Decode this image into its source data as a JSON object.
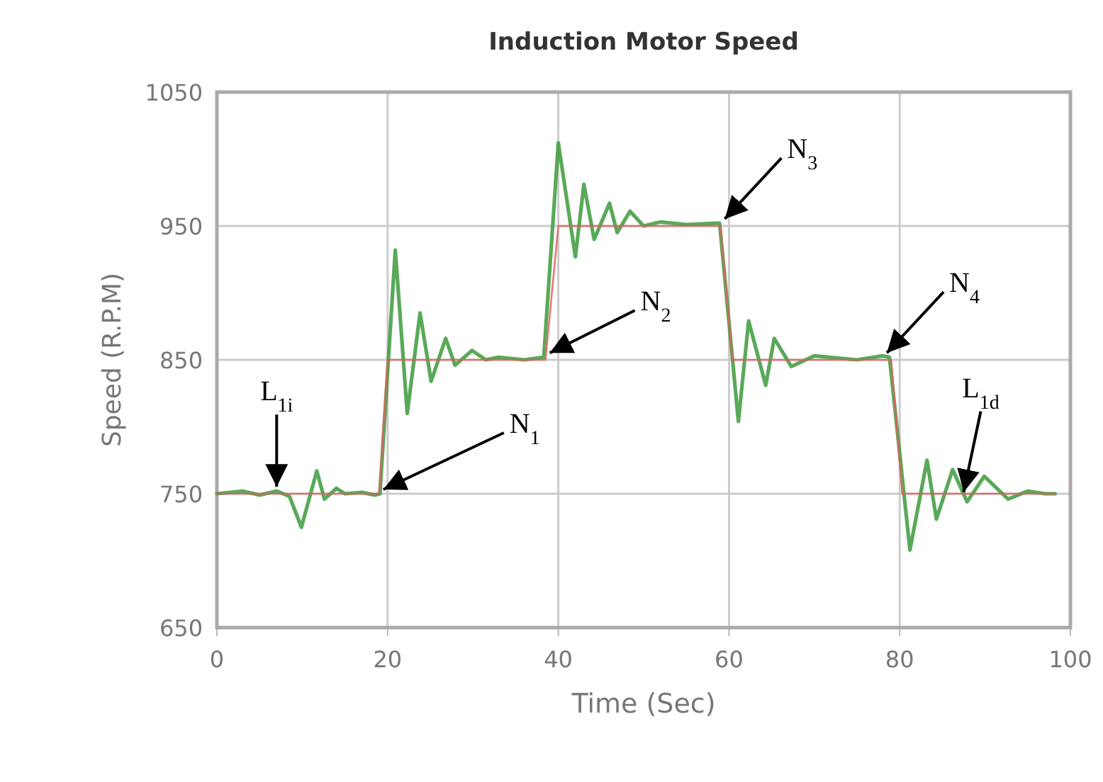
{
  "chart_data": {
    "type": "line",
    "title": "Induction Motor Speed",
    "xlabel": "Time (Sec)",
    "ylabel": "Speed (R.P.M)",
    "xlim": [
      0,
      100
    ],
    "ylim": [
      650,
      1050
    ],
    "xticks": [
      0,
      20,
      40,
      60,
      80,
      100
    ],
    "yticks": [
      650,
      750,
      850,
      950,
      1050
    ],
    "grid": true,
    "series": [
      {
        "color": "#3c9a3c",
        "x": [
          0,
          3,
          5,
          7,
          8.5,
          9.9,
          11.7,
          12.6,
          14,
          15,
          17,
          18.5,
          19.1,
          20.9,
          22.3,
          23.8,
          25.1,
          26.8,
          27.9,
          29.9,
          31.5,
          33,
          36,
          38.3,
          40,
          42,
          43,
          44.2,
          46,
          46.9,
          48.4,
          50,
          52,
          55,
          58.5,
          58.9,
          61.1,
          62.3,
          64.3,
          65.3,
          67.3,
          70,
          75,
          78,
          78.8,
          81.2,
          83.2,
          84.3,
          86.2,
          87.9,
          89.9,
          92.7,
          95,
          97,
          98.2
        ],
        "values": [
          750,
          752,
          749,
          752,
          748,
          725,
          767,
          746,
          754,
          750,
          751,
          749,
          750,
          932,
          810,
          885,
          834,
          866,
          846,
          857,
          850,
          852,
          850,
          852,
          1012,
          927,
          981,
          940,
          967,
          945,
          961,
          950,
          953,
          951,
          952,
          952,
          804,
          879,
          831,
          866,
          845,
          853,
          850,
          853,
          852,
          708,
          775,
          731,
          768,
          744,
          763,
          746,
          752,
          750,
          750
        ]
      },
      {
        "color": "#e06060",
        "x": [
          0,
          19,
          20,
          38.5,
          40,
          59,
          60.4,
          79,
          80.3,
          98.2
        ],
        "values": [
          750,
          750,
          850,
          850,
          950,
          950,
          850,
          850,
          750,
          750
        ]
      }
    ],
    "annotations": [
      {
        "text": "L$_{1i}$",
        "x": 7,
        "y": 752
      },
      {
        "text": "N$_{1}$",
        "x": 19,
        "y": 750
      },
      {
        "text": "N$_{2}$",
        "x": 38.5,
        "y": 852
      },
      {
        "text": "N$_{3}$",
        "x": 59,
        "y": 952
      },
      {
        "text": "N$_{4}$",
        "x": 78,
        "y": 852
      },
      {
        "text": "L$_{1d}$",
        "x": 87.5,
        "y": 748
      }
    ]
  }
}
